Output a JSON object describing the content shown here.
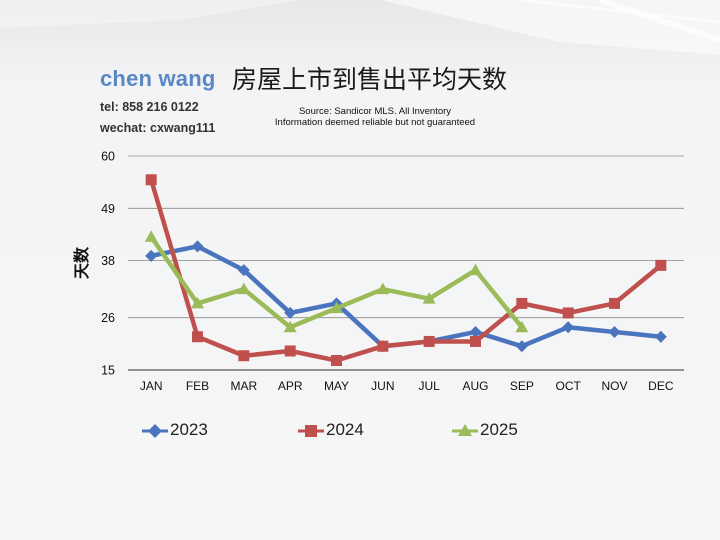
{
  "header": {
    "brand_name": "chen wang",
    "tel": "tel: 858 216 0122",
    "wechat": "wechat: cxwang111",
    "title": "房屋上市到售出平均天数",
    "source_line1": "Source: Sandicor MLS. All Inventory",
    "source_line2": "Information deemed reliable but not guaranteed"
  },
  "chart_data": {
    "type": "line",
    "title": "房屋上市到售出平均天数",
    "xlabel": "",
    "ylabel": "天数",
    "categories": [
      "JAN",
      "FEB",
      "MAR",
      "APR",
      "MAY",
      "JUN",
      "JUL",
      "AUG",
      "SEP",
      "OCT",
      "NOV",
      "DEC"
    ],
    "ylim": [
      15,
      60
    ],
    "yticks": [
      "15",
      "26",
      "38",
      "49",
      "60"
    ],
    "grid": true,
    "legend_position": "bottom",
    "series": [
      {
        "name": "2023",
        "color": "#4a74bd",
        "marker": "diamond",
        "values": [
          39,
          41,
          36,
          27,
          29,
          20,
          21,
          23,
          20,
          24,
          23,
          22
        ]
      },
      {
        "name": "2024",
        "color": "#c0504d",
        "marker": "square",
        "values": [
          55,
          22,
          18,
          19,
          17,
          20,
          21,
          21,
          29,
          27,
          29,
          37
        ]
      },
      {
        "name": "2025",
        "color": "#9bbb59",
        "marker": "triangle",
        "values": [
          43,
          29,
          32,
          24,
          28,
          32,
          30,
          36,
          24,
          null,
          null,
          null
        ]
      }
    ]
  }
}
